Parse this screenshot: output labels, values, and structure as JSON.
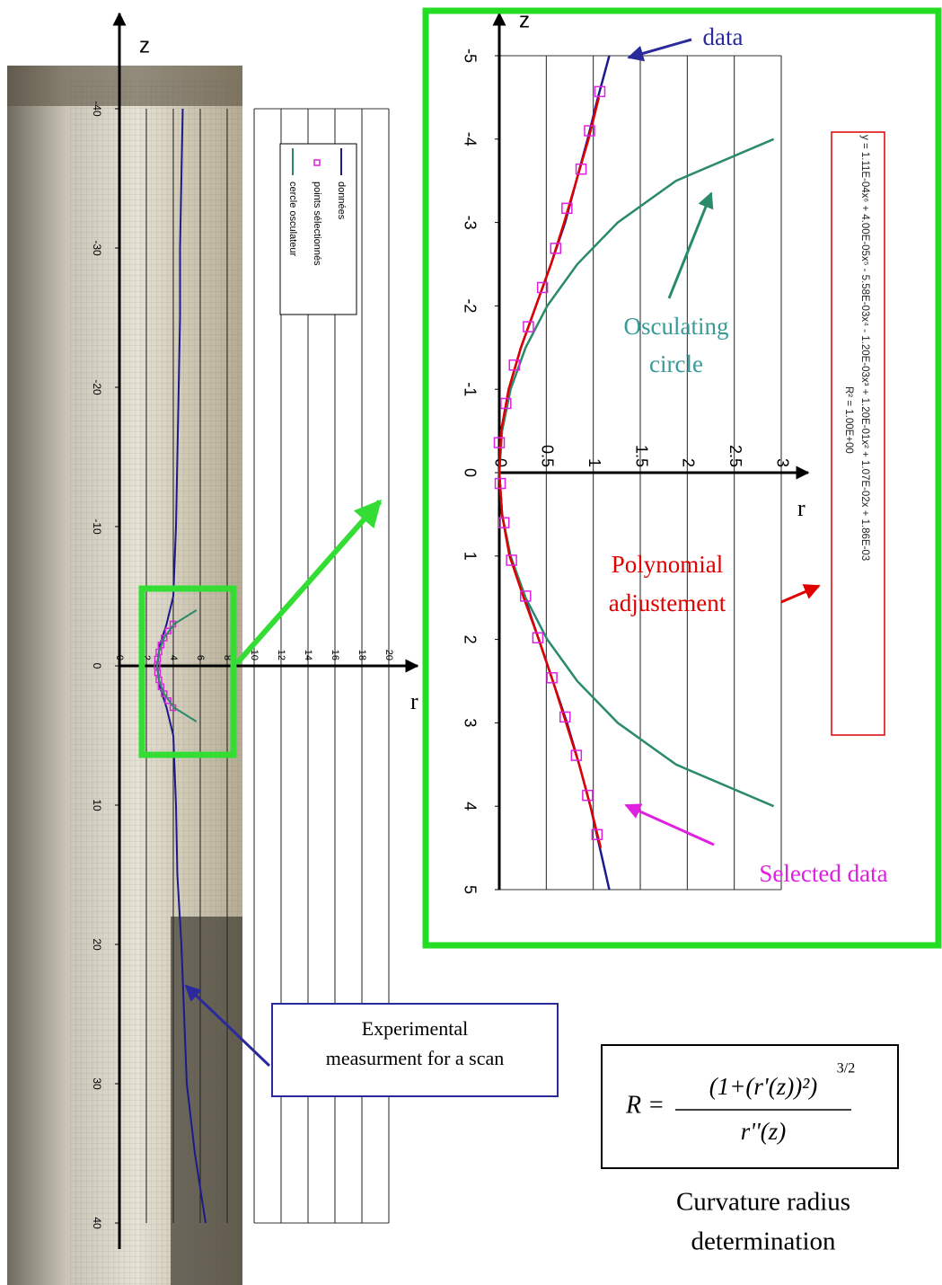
{
  "chart_data": [
    {
      "type": "line",
      "xlabel": "z",
      "ylabel": "r",
      "xlim": [
        -40,
        40
      ],
      "xticks": [
        -40,
        -30,
        -20,
        -10,
        0,
        10,
        20,
        30,
        40
      ],
      "ylim": [
        0,
        20
      ],
      "yticks": [
        0,
        2,
        4,
        6,
        8,
        10,
        12,
        14,
        16,
        18,
        20
      ],
      "grid": true,
      "legend": true,
      "series": [
        {
          "name": "données",
          "color": "#1a1a8c",
          "x": [
            -40,
            -35,
            -30,
            -25,
            -20,
            -15,
            -10,
            -5,
            -3,
            -1.5,
            0,
            1.5,
            3,
            5,
            10,
            15,
            20,
            25,
            30,
            35,
            40
          ],
          "values": [
            4.7,
            4.6,
            4.5,
            4.5,
            4.4,
            4.3,
            4.2,
            4.0,
            3.5,
            3.0,
            2.8,
            3.0,
            3.5,
            4.0,
            4.2,
            4.3,
            4.6,
            4.8,
            5.0,
            5.6,
            6.4
          ]
        },
        {
          "name": "points sélectionnés",
          "color": "#e020e0",
          "marker": "square",
          "x": [
            -3,
            -2.5,
            -2,
            -1.5,
            -1,
            -0.5,
            0,
            0.5,
            1,
            1.5,
            2,
            2.5,
            3
          ],
          "values": [
            3.97,
            3.61,
            3.32,
            3.09,
            2.93,
            2.83,
            2.8,
            2.83,
            2.93,
            3.09,
            3.32,
            3.61,
            3.97
          ]
        },
        {
          "name": "cercle osculateur",
          "color": "#2a8a6a",
          "x": [
            -4,
            -3,
            -2,
            -1,
            0,
            1,
            2,
            3,
            4
          ],
          "values": [
            5.72,
            4.06,
            3.31,
            2.92,
            2.8,
            2.92,
            3.31,
            4.06,
            5.72
          ]
        }
      ]
    },
    {
      "type": "line",
      "xlabel": "z",
      "ylabel": "r",
      "xlim": [
        -5,
        5
      ],
      "xticks": [
        -5,
        -4,
        -3,
        -2,
        -1,
        0,
        1,
        2,
        3,
        4,
        5
      ],
      "ylim": [
        0,
        3
      ],
      "yticks": [
        0,
        0.5,
        1,
        1.5,
        2,
        2.5,
        3
      ],
      "grid": true,
      "legend": false,
      "series": [
        {
          "color": "#1a1a8c",
          "x": [
            -5,
            -4.5,
            -4,
            -3.5,
            -3,
            -2.5,
            -2,
            -1.5,
            -1,
            -0.5,
            0,
            0.5,
            1,
            1.5,
            2,
            2.5,
            3,
            3.5,
            4,
            4.5,
            5
          ],
          "values": [
            1.17,
            1.05,
            0.94,
            0.82,
            0.7,
            0.55,
            0.39,
            0.23,
            0.1,
            0.02,
            0,
            0.03,
            0.11,
            0.27,
            0.42,
            0.57,
            0.72,
            0.85,
            0.97,
            1.07,
            1.17
          ]
        },
        {
          "color": "#2a8a6a",
          "x": [
            -4,
            -3.5,
            -3,
            -2.5,
            -2,
            -1.5,
            -1,
            -0.5,
            0,
            0.5,
            1,
            1.5,
            2,
            2.5,
            3,
            3.5,
            4
          ],
          "values": [
            2.92,
            1.88,
            1.26,
            0.83,
            0.51,
            0.28,
            0.12,
            0.03,
            0,
            0.03,
            0.12,
            0.28,
            0.51,
            0.83,
            1.26,
            1.88,
            2.92
          ]
        },
        {
          "color": "#e00000",
          "x": [
            -4.5,
            -4,
            -3.5,
            -3,
            -2.5,
            -2,
            -1.5,
            -1,
            -0.5,
            0,
            0.5,
            1,
            1.5,
            2,
            2.5,
            3,
            3.5,
            4,
            4.5
          ],
          "values": [
            1.06,
            0.95,
            0.82,
            0.69,
            0.55,
            0.39,
            0.23,
            0.1,
            0.02,
            0,
            0.03,
            0.11,
            0.26,
            0.42,
            0.57,
            0.71,
            0.85,
            0.97,
            1.08
          ]
        },
        {
          "color": "#e020e0",
          "marker": "square",
          "x": [
            -4.57,
            -4.1,
            -3.64,
            -3.17,
            -2.69,
            -2.22,
            -1.75,
            -1.29,
            -0.83,
            -0.36,
            0.13,
            0.6,
            1.05,
            1.48,
            1.98,
            2.46,
            2.93,
            3.39,
            3.87,
            4.34
          ],
          "values": [
            1.07,
            0.96,
            0.87,
            0.72,
            0.6,
            0.46,
            0.31,
            0.16,
            0.07,
            0,
            0.01,
            0.05,
            0.13,
            0.28,
            0.41,
            0.56,
            0.7,
            0.82,
            0.94,
            1.04
          ]
        }
      ]
    }
  ],
  "annotations": {
    "data": "data",
    "osculating": [
      "Osculating",
      "circle"
    ],
    "polynomial": [
      "Polynomial",
      "adjustement"
    ],
    "selected": "Selected data",
    "equation": "y = 1.11E-04x⁶ + 4.00E-05x⁵ - 5.58E-03x⁴ - 1.20E-03x³ + 1.20E-01x² + 1.07E-02x + 1.86E-03",
    "r_squared": "R² = 1.00E+00",
    "callout": [
      "Experimental",
      "measurment for a scan"
    ]
  },
  "formula": {
    "lhs": "R =",
    "numerator": "(1+(r'(z))²)",
    "exponent": "3/2",
    "denominator": "r''(z)"
  },
  "caption": [
    "Curvature radius",
    "determination"
  ]
}
